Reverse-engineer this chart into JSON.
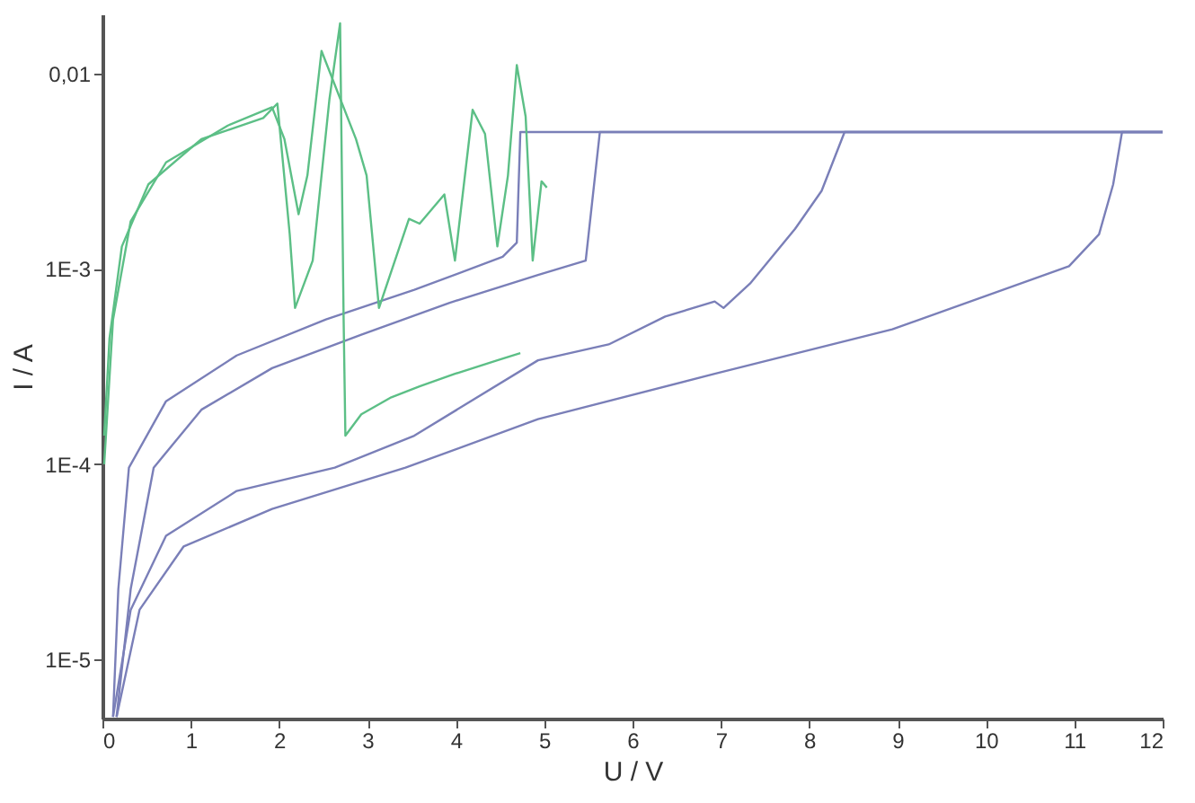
{
  "chart_data": {
    "type": "line",
    "xlabel": "U / V",
    "ylabel": "I / A",
    "log": "y",
    "grid": false,
    "legend": false,
    "marker": "none",
    "line_style": "solid",
    "xlim": [
      0,
      12
    ],
    "xticks": [
      0,
      1,
      2,
      3,
      4,
      5,
      6,
      7,
      8,
      9,
      10,
      11,
      12
    ],
    "ylim": [
      5e-06,
      0.02
    ],
    "yticks": [
      {
        "value": 0.01,
        "label": "0,01"
      },
      {
        "value": 0.001,
        "label": "1E-3"
      },
      {
        "value": 0.0001,
        "label": "1E-4"
      },
      {
        "value": 1e-05,
        "label": "1E-5"
      }
    ],
    "series": [
      {
        "color": "#7a7fb8",
        "x": [
          0.12,
          0.18,
          0.3,
          0.72,
          1.52,
          2.53,
          3.53,
          4.53,
          4.69,
          4.73,
          12
        ],
        "values": [
          5.1e-06,
          2.3e-05,
          9.6e-05,
          0.00021,
          0.00036,
          0.00055,
          0.00078,
          0.00115,
          0.00136,
          0.005,
          0.005
        ]
      },
      {
        "color": "#7a7fb8",
        "x": [
          0.16,
          0.32,
          0.58,
          1.12,
          1.92,
          2.93,
          3.93,
          4.93,
          5.47,
          5.63,
          12
        ],
        "values": [
          5.1e-06,
          2.3e-05,
          9.6e-05,
          0.00019,
          0.00031,
          0.00046,
          0.00067,
          0.00093,
          0.0011,
          0.005,
          0.005
        ]
      },
      {
        "color": "#7a7fb8",
        "x": [
          0.12,
          0.32,
          0.72,
          1.52,
          2.63,
          3.53,
          4.93,
          5.73,
          6.37,
          6.93,
          7.03,
          7.33,
          7.84,
          8.14,
          8.4,
          12
        ],
        "values": [
          5.1e-06,
          1.8e-05,
          4.3e-05,
          7.3e-05,
          9.6e-05,
          0.00014,
          0.00034,
          0.00041,
          0.00057,
          0.00068,
          0.00063,
          0.00084,
          0.0016,
          0.0025,
          0.005,
          0.005
        ]
      },
      {
        "color": "#7a7fb8",
        "x": [
          0.16,
          0.42,
          0.92,
          1.92,
          3.43,
          4.93,
          6.93,
          8.94,
          10.94,
          11.28,
          11.44,
          11.54,
          12
        ],
        "values": [
          5.1e-06,
          1.8e-05,
          3.8e-05,
          5.9e-05,
          9.6e-05,
          0.00017,
          0.00029,
          0.00049,
          0.00103,
          0.0015,
          0.0027,
          0.005,
          0.005
        ]
      },
      {
        "color": "#5cbf86",
        "x": [
          0.02,
          0.08,
          0.22,
          0.52,
          1.12,
          1.82,
          1.98,
          2.12,
          2.18,
          2.38,
          2.57,
          2.69,
          2.73,
          2.75,
          2.93,
          3.27,
          3.59,
          3.99,
          4.47,
          4.73
        ],
        "values": [
          0.00014,
          0.00044,
          0.0013,
          0.0027,
          0.0046,
          0.0059,
          0.007,
          0.0015,
          0.00063,
          0.0011,
          0.0074,
          0.018,
          0.00055,
          0.00014,
          0.00018,
          0.00022,
          0.00025,
          0.00029,
          0.00034,
          0.00037
        ]
      },
      {
        "color": "#5cbf86",
        "x": [
          0.02,
          0.12,
          0.32,
          0.72,
          1.42,
          1.92,
          2.06,
          2.22,
          2.32,
          2.48,
          2.87,
          2.99,
          3.13,
          3.47,
          3.59,
          3.87,
          3.99,
          4.19,
          4.33,
          4.47,
          4.59,
          4.69,
          4.79,
          4.87,
          4.97,
          5.03
        ],
        "values": [
          0.0001,
          0.00055,
          0.00175,
          0.0035,
          0.0054,
          0.0067,
          0.0046,
          0.0019,
          0.003,
          0.013,
          0.0046,
          0.003,
          0.00063,
          0.0018,
          0.0017,
          0.0024,
          0.0011,
          0.0065,
          0.0049,
          0.0013,
          0.003,
          0.011,
          0.006,
          0.0011,
          0.0028,
          0.0026
        ]
      }
    ]
  }
}
